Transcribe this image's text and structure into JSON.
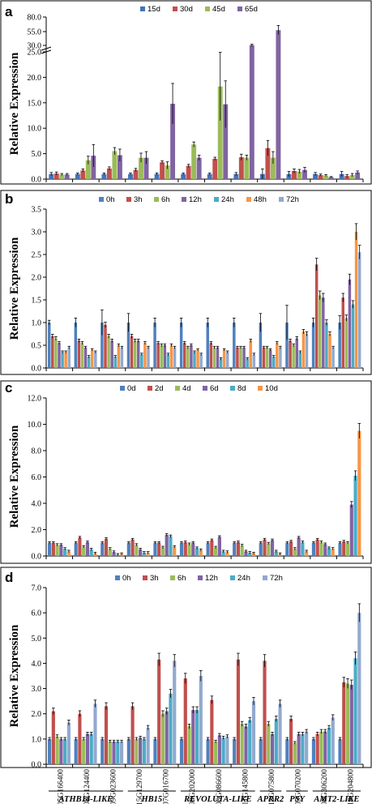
{
  "colors": {
    "15d": "#4573b8",
    "30d": "#c0504d",
    "45d": "#9bbb59",
    "65d": "#8064a2",
    "0h": "#4f81bd",
    "3h": "#c0504d",
    "6h": "#9bbb59",
    "12h": "#8064a2",
    "24h": "#4bacc6",
    "48h": "#f79646",
    "72h": "#92a9cf",
    "0d": "#4f81bd",
    "2d": "#c0504d",
    "4d": "#9bbb59",
    "6d": "#8064a2",
    "8d": "#4bacc6",
    "10d": "#f79646"
  },
  "genes": [
    "05G166400",
    "08G124400",
    "09G023600",
    "15G129700",
    "07G016700",
    "08G202000",
    "06G086600",
    "11G145800",
    "12G075800",
    "05G070200",
    "08G306200",
    "18G204800"
  ],
  "families": [
    {
      "label": "ATHB14-LIKE",
      "start": 0,
      "end": 2
    },
    {
      "label": "HB15",
      "start": 3,
      "end": 4
    },
    {
      "label": "REVOLUTA-LIKE",
      "start": 5,
      "end": 7
    },
    {
      "label": "APRR2",
      "start": 8,
      "end": 8
    },
    {
      "label": "PSY",
      "start": 9,
      "end": 9
    },
    {
      "label": "AMT2-LIKE",
      "start": 10,
      "end": 11
    }
  ],
  "chart_data": [
    {
      "panel": "a",
      "type": "bar",
      "ylabel": "Relative Expression",
      "grid": false,
      "legend": "top-center",
      "broken_axis": true,
      "ylim": [
        0,
        80
      ],
      "yticks": [
        "0.0",
        "5.0",
        "10.0",
        "15.0",
        "20.0",
        "25.0",
        "30.0",
        "55.0",
        "80.0"
      ],
      "series": [
        {
          "name": "15d",
          "values": [
            1.0,
            1.0,
            1.0,
            1.0,
            1.0,
            1.0,
            1.0,
            1.0,
            1.0,
            1.0,
            1.0,
            1.0
          ],
          "err": [
            0.3,
            0.2,
            0.2,
            0.2,
            0.2,
            0.2,
            0.2,
            0.3,
            1.0,
            0.5,
            0.3,
            0.5
          ]
        },
        {
          "name": "30d",
          "values": [
            1.1,
            1.7,
            2.1,
            1.8,
            3.3,
            2.6,
            4.0,
            4.3,
            6.1,
            1.6,
            0.8,
            0.6
          ],
          "err": [
            0.3,
            0.3,
            0.3,
            0.3,
            0.3,
            0.3,
            0.3,
            0.6,
            1.5,
            0.4,
            0.2,
            0.3
          ]
        },
        {
          "name": "45d",
          "values": [
            0.9,
            3.7,
            5.5,
            4.2,
            2.7,
            6.8,
            18.2,
            4.2,
            4.2,
            1.5,
            0.7,
            0.8
          ],
          "err": [
            0.2,
            0.8,
            0.7,
            0.9,
            0.7,
            0.5,
            6.7,
            0.5,
            1.2,
            0.4,
            0.2,
            0.3
          ]
        },
        {
          "name": "65d",
          "values": [
            0.9,
            4.6,
            4.7,
            4.2,
            14.8,
            4.2,
            14.7,
            30.5,
            57.5,
            1.8,
            0.4,
            1.3
          ],
          "err": [
            0.2,
            2.2,
            1.2,
            1.2,
            4.0,
            0.5,
            4.6,
            1.5,
            8.0,
            0.5,
            0.1,
            0.3
          ]
        }
      ]
    },
    {
      "panel": "b",
      "type": "bar",
      "ylabel": "Relative Expression",
      "grid": false,
      "legend": "top-center",
      "ylim": [
        0,
        3.5
      ],
      "yticks": [
        "0.0",
        "0.5",
        "1.0",
        "1.5",
        "2.0",
        "2.5",
        "3.0",
        "3.5"
      ],
      "series": [
        {
          "name": "0h",
          "values": [
            1.0,
            1.0,
            1.0,
            1.0,
            1.0,
            1.0,
            1.0,
            1.0,
            1.0,
            1.0,
            1.0,
            1.0
          ],
          "err": [
            0.05,
            0.1,
            0.28,
            0.2,
            0.1,
            0.1,
            0.1,
            0.1,
            0.2,
            0.38,
            0.1,
            0.15
          ]
        },
        {
          "name": "3h",
          "values": [
            0.7,
            0.6,
            0.95,
            0.7,
            0.55,
            0.55,
            0.55,
            0.45,
            0.45,
            0.6,
            2.28,
            1.55
          ]
        },
        {
          "name": "6h",
          "values": [
            0.65,
            0.55,
            0.7,
            0.6,
            0.5,
            0.45,
            0.45,
            0.45,
            0.45,
            0.5,
            1.6,
            1.1
          ]
        },
        {
          "name": "12h",
          "values": [
            0.55,
            0.45,
            0.6,
            0.6,
            0.5,
            0.5,
            0.45,
            0.45,
            0.4,
            0.65,
            1.55,
            1.95
          ]
        },
        {
          "name": "24h",
          "values": [
            0.35,
            0.25,
            0.25,
            0.3,
            0.3,
            0.35,
            0.2,
            0.2,
            0.25,
            0.35,
            1.0,
            1.4
          ]
        },
        {
          "name": "48h",
          "values": [
            0.35,
            0.4,
            0.5,
            0.55,
            0.5,
            0.4,
            0.4,
            0.6,
            0.55,
            0.8,
            0.75,
            3.0
          ]
        },
        {
          "name": "72h",
          "values": [
            0.45,
            0.35,
            0.45,
            0.45,
            0.45,
            0.3,
            0.35,
            0.3,
            0.45,
            0.75,
            0.45,
            2.55
          ]
        }
      ]
    },
    {
      "panel": "c",
      "type": "bar",
      "ylabel": "Relative Expression",
      "grid": false,
      "legend": "top-center",
      "ylim": [
        0,
        12
      ],
      "yticks": [
        "0.0",
        "2.0",
        "4.0",
        "6.0",
        "8.0",
        "10.0",
        "12.0"
      ],
      "series": [
        {
          "name": "0d",
          "values": [
            1.0,
            1.0,
            1.0,
            1.0,
            1.0,
            1.0,
            1.0,
            1.0,
            1.0,
            1.0,
            1.0,
            1.0
          ]
        },
        {
          "name": "2d",
          "values": [
            1.0,
            1.4,
            1.3,
            1.25,
            1.0,
            1.05,
            1.2,
            1.05,
            1.25,
            1.1,
            1.25,
            1.1
          ]
        },
        {
          "name": "4d",
          "values": [
            0.85,
            0.7,
            0.55,
            0.85,
            0.65,
            0.9,
            0.65,
            0.8,
            0.95,
            0.55,
            1.05,
            1.0
          ]
        },
        {
          "name": "6d",
          "values": [
            0.85,
            1.05,
            0.3,
            0.5,
            1.6,
            1.0,
            1.45,
            0.35,
            1.2,
            1.4,
            0.9,
            3.9
          ]
        },
        {
          "name": "8d",
          "values": [
            0.55,
            0.5,
            0.1,
            0.25,
            1.5,
            0.6,
            0.35,
            0.25,
            0.35,
            1.05,
            0.6,
            6.1
          ]
        },
        {
          "name": "10d",
          "values": [
            0.35,
            0.2,
            0.15,
            0.25,
            0.7,
            0.45,
            0.3,
            0.2,
            0.15,
            0.35,
            0.55,
            9.5
          ]
        }
      ]
    },
    {
      "panel": "d",
      "type": "bar",
      "ylabel": "Relative Expression",
      "grid": false,
      "legend": "top-center",
      "ylim": [
        0,
        7
      ],
      "yticks": [
        "0.0",
        "1.0",
        "2.0",
        "3.0",
        "4.0",
        "5.0",
        "6.0",
        "7.0"
      ],
      "series": [
        {
          "name": "0h",
          "values": [
            1.0,
            1.0,
            1.0,
            1.0,
            1.0,
            1.0,
            1.0,
            1.0,
            1.0,
            1.0,
            1.0,
            1.0
          ]
        },
        {
          "name": "3h",
          "values": [
            2.1,
            2.0,
            2.3,
            2.3,
            4.15,
            3.4,
            2.55,
            4.15,
            4.1,
            1.8,
            1.2,
            3.25
          ]
        },
        {
          "name": "6h",
          "values": [
            1.1,
            1.0,
            0.9,
            1.0,
            2.0,
            1.5,
            0.9,
            1.6,
            1.6,
            0.85,
            1.3,
            3.2
          ]
        },
        {
          "name": "12h",
          "values": [
            1.0,
            1.2,
            0.9,
            1.05,
            2.1,
            2.15,
            1.15,
            1.5,
            1.2,
            1.2,
            1.3,
            3.15
          ]
        },
        {
          "name": "24h",
          "values": [
            1.0,
            1.2,
            0.9,
            1.0,
            2.8,
            2.15,
            1.05,
            1.75,
            1.8,
            1.2,
            1.45,
            4.2
          ]
        },
        {
          "name": "72h",
          "values": [
            1.65,
            2.4,
            0.9,
            1.45,
            4.1,
            3.5,
            1.1,
            2.5,
            2.4,
            1.3,
            1.85,
            6.0
          ]
        }
      ]
    }
  ]
}
